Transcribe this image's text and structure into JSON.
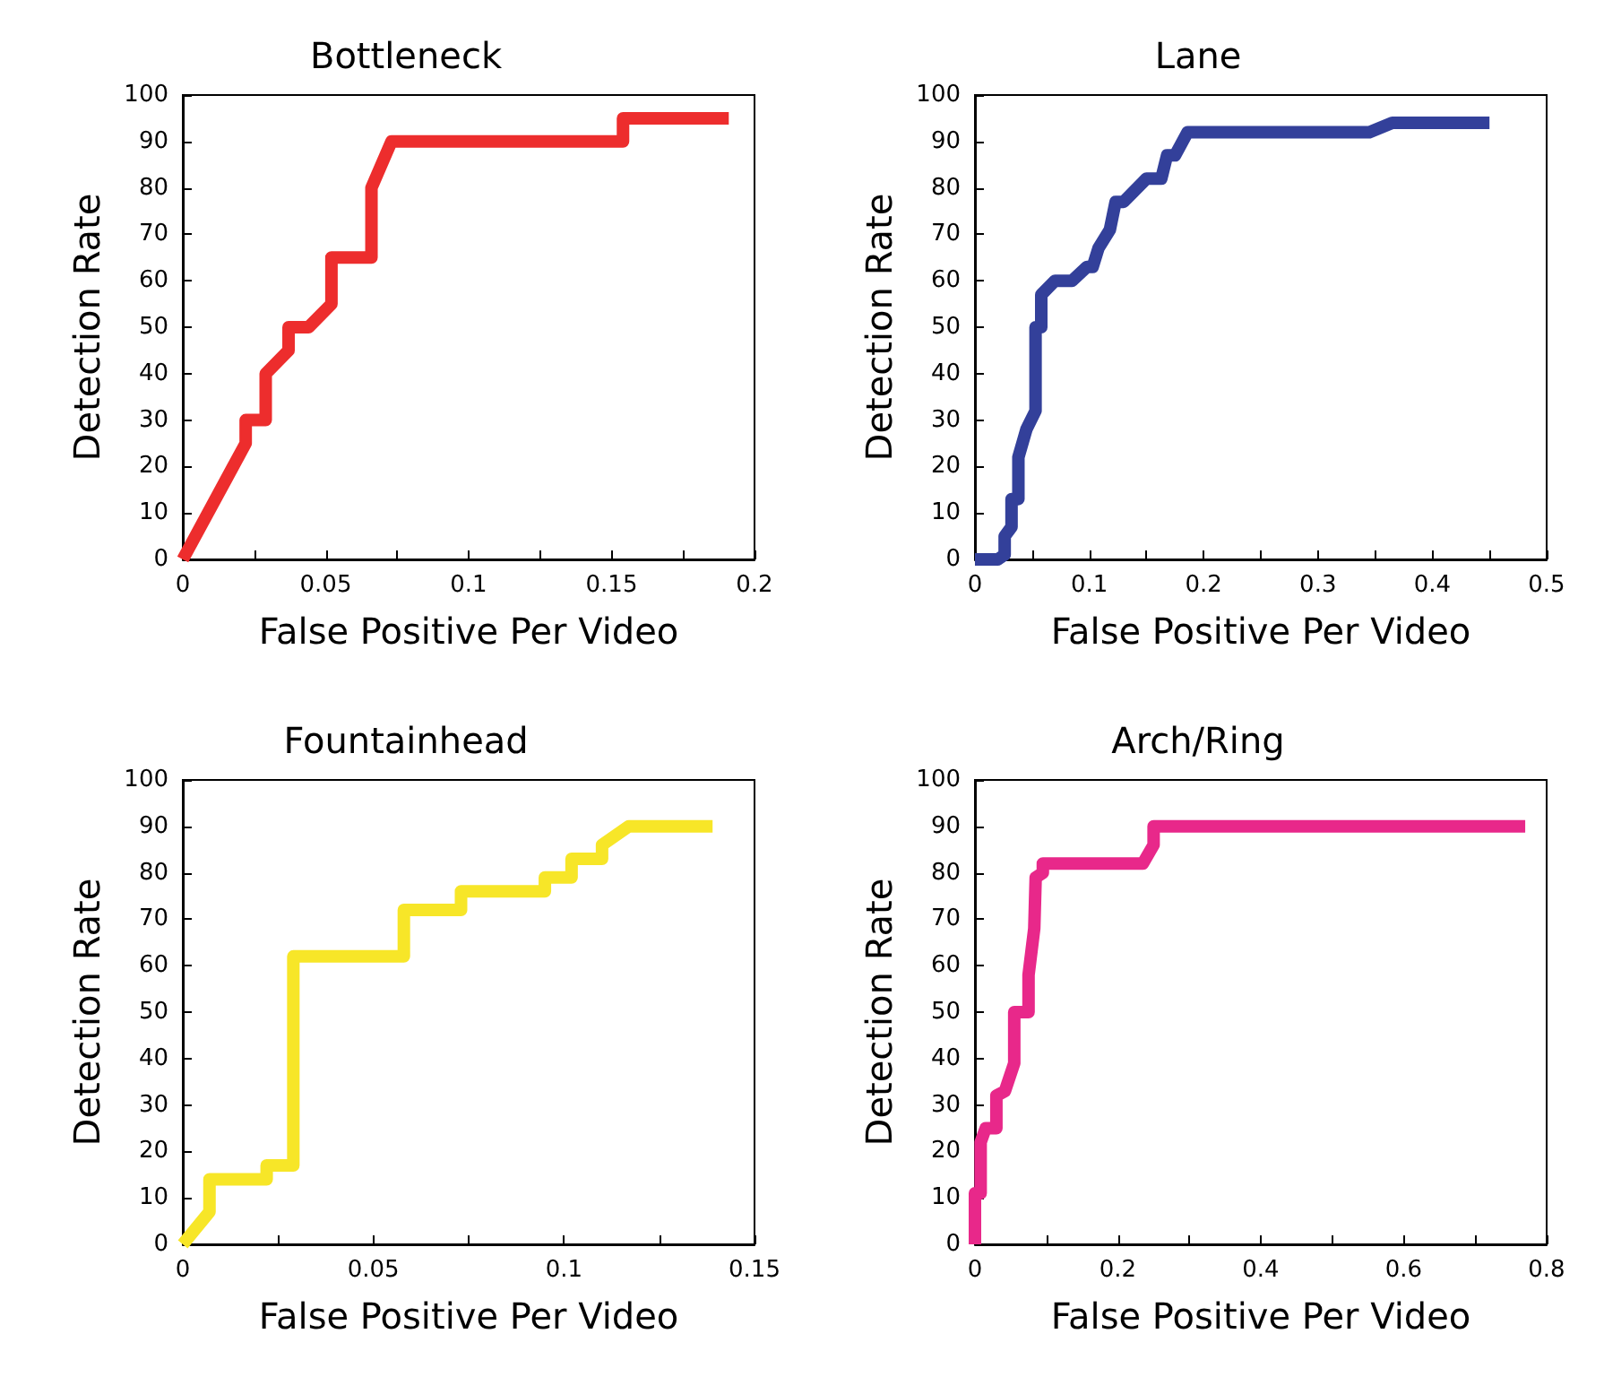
{
  "chart_data": [
    {
      "type": "line",
      "title": "Bottleneck",
      "xlabel": "False Positive Per Video",
      "ylabel": "Detection Rate",
      "xlim": [
        0,
        0.2
      ],
      "xticks": [
        0,
        {
          "value": 0.025,
          "label": null
        },
        0.05,
        {
          "value": 0.075,
          "label": null
        },
        0.1,
        {
          "value": 0.125,
          "label": null
        },
        0.15,
        {
          "value": 0.175,
          "label": null
        },
        0.2
      ],
      "ylim": [
        0,
        100
      ],
      "yticks": [
        0,
        10,
        20,
        30,
        40,
        50,
        60,
        70,
        80,
        90,
        100
      ],
      "grid": false,
      "marker": "none",
      "series": [
        {
          "color": "#ed2d2d",
          "x": [
            0,
            0.022,
            0.022,
            0.029,
            0.029,
            0.037,
            0.037,
            0.044,
            0.052,
            0.052,
            0.066,
            0.066,
            0.073,
            0.154,
            0.154,
            0.191
          ],
          "values": [
            0,
            25,
            30,
            30,
            40,
            45,
            50,
            50,
            55,
            65,
            65,
            80,
            90,
            90,
            95,
            95
          ]
        }
      ]
    },
    {
      "type": "line",
      "title": "Lane",
      "xlabel": "False Positive Per Video",
      "ylabel": "Detection Rate",
      "xlim": [
        0,
        0.5
      ],
      "xticks": [
        0,
        {
          "value": 0.05,
          "label": null
        },
        0.1,
        {
          "value": 0.15,
          "label": null
        },
        0.2,
        {
          "value": 0.25,
          "label": null
        },
        0.3,
        {
          "value": 0.35,
          "label": null
        },
        0.4,
        {
          "value": 0.45,
          "label": null
        },
        0.5
      ],
      "ylim": [
        0,
        100
      ],
      "yticks": [
        0,
        10,
        20,
        30,
        40,
        50,
        60,
        70,
        80,
        90,
        100
      ],
      "grid": false,
      "marker": "none",
      "series": [
        {
          "color": "#33409a",
          "x": [
            0,
            0.02,
            0.026,
            0.026,
            0.032,
            0.032,
            0.038,
            0.038,
            0.045,
            0.053,
            0.053,
            0.058,
            0.058,
            0.07,
            0.085,
            0.098,
            0.103,
            0.108,
            0.118,
            0.123,
            0.13,
            0.15,
            0.163,
            0.168,
            0.175,
            0.186,
            0.345,
            0.365,
            0.45
          ],
          "values": [
            0,
            0,
            1,
            5,
            7,
            13,
            13,
            22,
            28,
            32,
            50,
            50,
            57,
            60,
            60,
            63,
            63,
            67,
            71,
            77,
            77,
            82,
            82,
            87,
            87,
            92,
            92,
            94,
            94
          ]
        }
      ]
    },
    {
      "type": "line",
      "title": "Fountainhead",
      "xlabel": "False Positive Per Video",
      "ylabel": "Detection Rate",
      "xlim": [
        0,
        0.15
      ],
      "xticks": [
        0,
        {
          "value": 0.025,
          "label": null
        },
        0.05,
        {
          "value": 0.075,
          "label": null
        },
        0.1,
        {
          "value": 0.125,
          "label": null
        },
        0.15
      ],
      "ylim": [
        0,
        100
      ],
      "yticks": [
        0,
        10,
        20,
        30,
        40,
        50,
        60,
        70,
        80,
        90,
        100
      ],
      "grid": false,
      "marker": "none",
      "series": [
        {
          "color": "#f7e628",
          "x": [
            0,
            0.007,
            0.007,
            0.022,
            0.022,
            0.029,
            0.029,
            0.058,
            0.058,
            0.073,
            0.073,
            0.095,
            0.095,
            0.102,
            0.102,
            0.11,
            0.11,
            0.117,
            0.139
          ],
          "values": [
            0,
            7,
            14,
            14,
            17,
            17,
            62,
            62,
            72,
            72,
            76,
            76,
            79,
            79,
            83,
            83,
            86,
            90,
            90
          ]
        }
      ]
    },
    {
      "type": "line",
      "title": "Arch/Ring",
      "xlabel": "False Positive Per Video",
      "ylabel": "Detection Rate",
      "xlim": [
        0,
        0.8
      ],
      "xticks": [
        0,
        {
          "value": 0.1,
          "label": null
        },
        0.2,
        {
          "value": 0.3,
          "label": null
        },
        0.4,
        {
          "value": 0.5,
          "label": null
        },
        0.6,
        {
          "value": 0.7,
          "label": null
        },
        0.8
      ],
      "ylim": [
        0,
        100
      ],
      "yticks": [
        0,
        10,
        20,
        30,
        40,
        50,
        60,
        70,
        80,
        90,
        100
      ],
      "grid": false,
      "marker": "none",
      "series": [
        {
          "color": "#e8288a",
          "x": [
            0,
            0,
            0.008,
            0.008,
            0.015,
            0.03,
            0.03,
            0.042,
            0.055,
            0.055,
            0.075,
            0.075,
            0.083,
            0.085,
            0.095,
            0.095,
            0.235,
            0.25,
            0.25,
            0.77
          ],
          "values": [
            0,
            11,
            11,
            22,
            25,
            25,
            32,
            33,
            39,
            50,
            50,
            58,
            68,
            79,
            80,
            82,
            82,
            86,
            90,
            90
          ]
        }
      ]
    }
  ]
}
